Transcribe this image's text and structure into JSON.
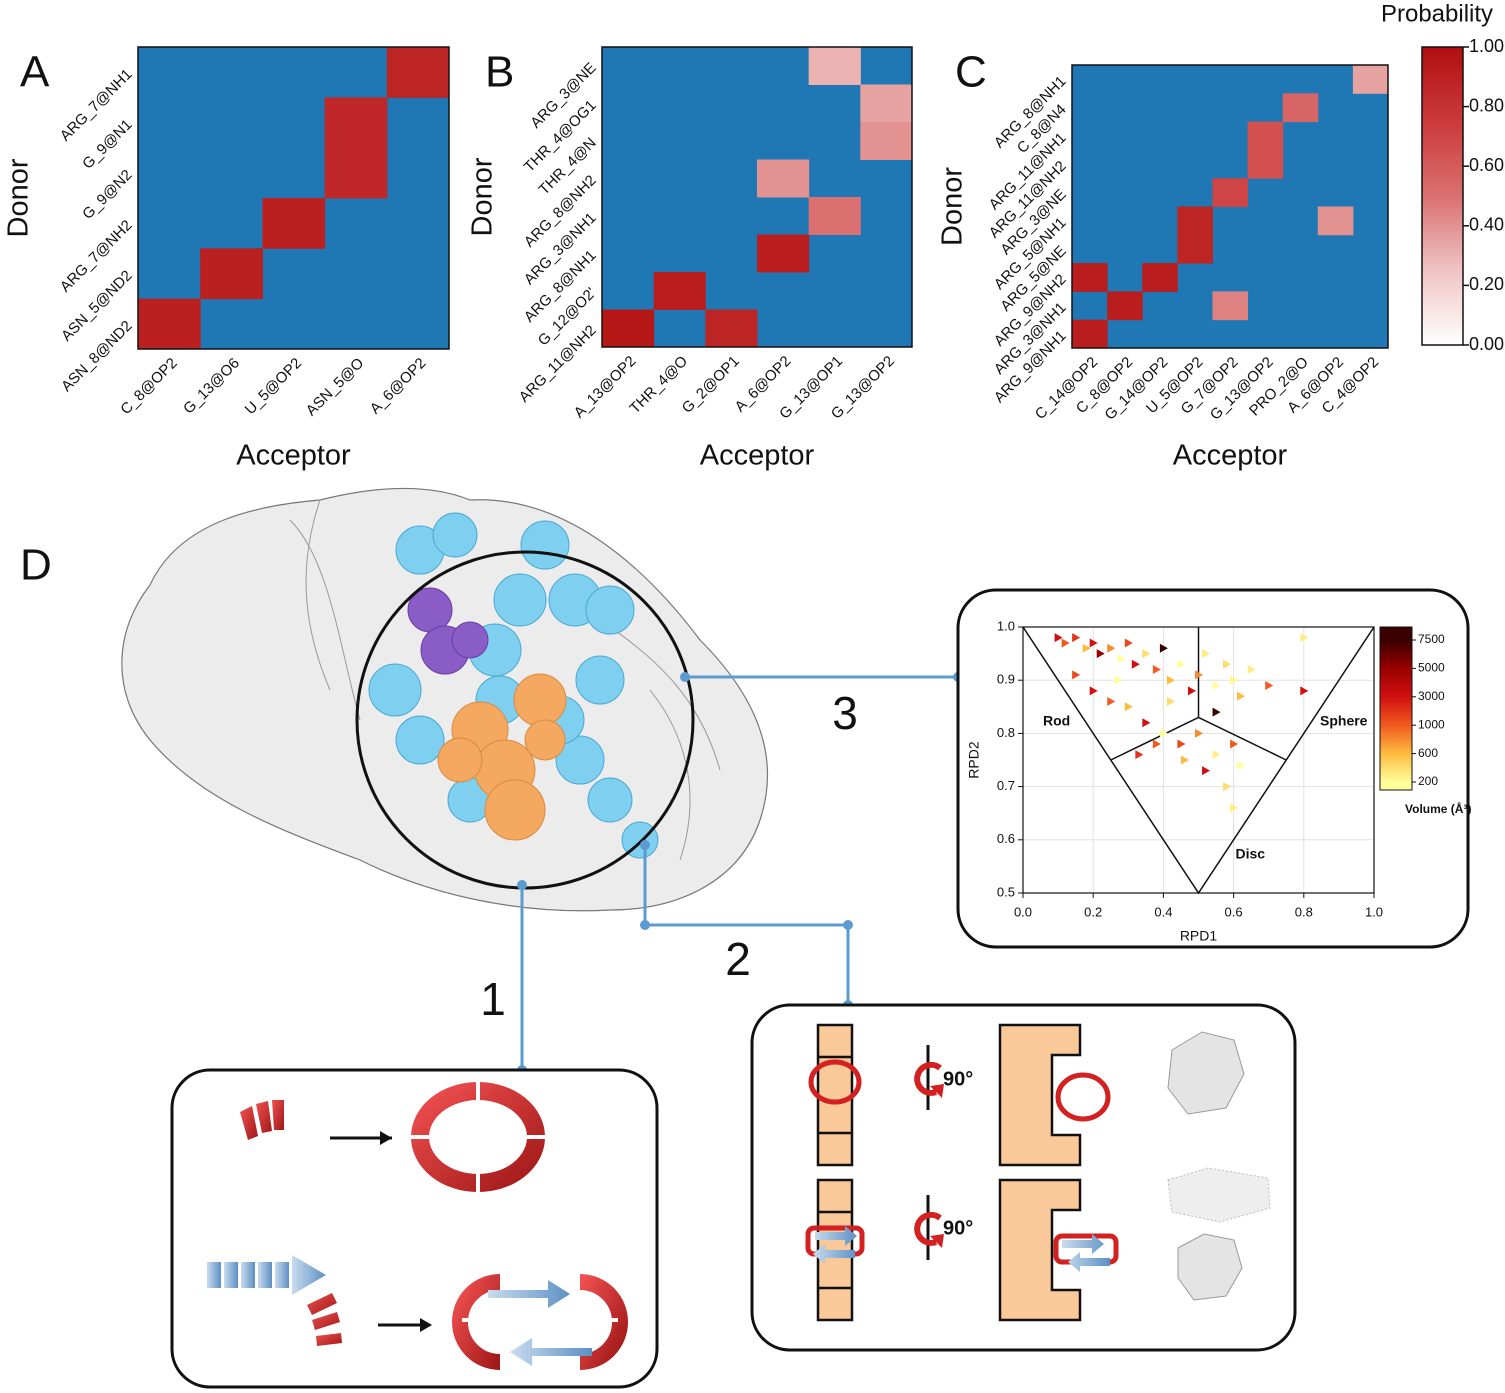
{
  "figure": {
    "panel_d": "D",
    "steps": [
      "1",
      "2",
      "3"
    ],
    "rotation_labels": [
      "90°",
      "90°"
    ]
  },
  "chart_data": [
    {
      "type": "heatmap",
      "panel": "A",
      "x_label": "Acceptor",
      "y_label": "Donor",
      "missing_color": "#1f78b4",
      "rows": [
        "ARG_7@NH1",
        "G_9@N1",
        "G_9@N2",
        "ARG_7@NH2",
        "ASN_5@ND2",
        "ASN_8@ND2"
      ],
      "columns": [
        "C_8@OP2",
        "G_13@O6",
        "U_5@OP2",
        "ASN_5@O",
        "A_6@OP2"
      ],
      "values": [
        [
          null,
          null,
          null,
          null,
          0.88
        ],
        [
          null,
          null,
          null,
          0.86,
          null
        ],
        [
          null,
          null,
          null,
          0.86,
          null
        ],
        [
          null,
          null,
          0.9,
          null,
          null
        ],
        [
          null,
          0.9,
          null,
          null,
          null
        ],
        [
          0.9,
          null,
          null,
          null,
          null
        ]
      ]
    },
    {
      "type": "heatmap",
      "panel": "B",
      "x_label": "Acceptor",
      "y_label": "Donor",
      "missing_color": "#1f78b4",
      "rows": [
        "ARG_3@NE",
        "THR_4@OG1",
        "THR_4@N",
        "ARG_8@NH2",
        "ARG_3@NH1",
        "ARG_8@NH1",
        "G_12@O2'",
        "ARG_11@NH2"
      ],
      "columns": [
        "A_13@OP2",
        "THR_4@O",
        "G_2@OP1",
        "A_6@OP2",
        "G_13@OP1",
        "G_13@OP2"
      ],
      "values": [
        [
          null,
          null,
          null,
          null,
          0.3,
          null
        ],
        [
          null,
          null,
          null,
          null,
          null,
          0.35
        ],
        [
          null,
          null,
          null,
          null,
          null,
          0.4
        ],
        [
          null,
          null,
          null,
          0.4,
          null,
          null
        ],
        [
          null,
          null,
          null,
          null,
          0.5,
          null
        ],
        [
          null,
          null,
          null,
          0.92,
          null,
          null
        ],
        [
          null,
          0.92,
          null,
          null,
          null,
          null
        ],
        [
          0.95,
          null,
          0.88,
          null,
          null,
          null
        ]
      ]
    },
    {
      "type": "heatmap",
      "panel": "C",
      "x_label": "Acceptor",
      "y_label": "Donor",
      "missing_color": "#1f78b4",
      "rows": [
        "ARG_8@NH1",
        "C_8@N4",
        "ARG_11@NH1",
        "ARG_11@NH2",
        "ARG_3@NE",
        "ARG_5@NH1",
        "ARG_5@NE",
        "ARG_9@NH2",
        "ARG_3@NH1",
        "ARG_9@NH1"
      ],
      "columns": [
        "C_14@OP2",
        "C_8@OP2",
        "G_14@OP2",
        "U_5@OP2",
        "G_7@OP2",
        "G_13@OP2",
        "PRO_2@O",
        "A_6@OP2",
        "C_4@OP2"
      ],
      "values": [
        [
          null,
          null,
          null,
          null,
          null,
          null,
          null,
          null,
          0.35
        ],
        [
          null,
          null,
          null,
          null,
          null,
          null,
          0.55,
          null,
          null
        ],
        [
          null,
          null,
          null,
          null,
          null,
          0.65,
          null,
          null,
          null
        ],
        [
          null,
          null,
          null,
          null,
          null,
          0.65,
          null,
          null,
          null
        ],
        [
          null,
          null,
          null,
          null,
          0.7,
          null,
          null,
          null,
          null
        ],
        [
          null,
          null,
          null,
          0.88,
          null,
          null,
          null,
          0.4,
          null
        ],
        [
          null,
          null,
          null,
          0.88,
          null,
          null,
          null,
          null,
          null
        ],
        [
          0.92,
          null,
          0.92,
          null,
          null,
          null,
          null,
          null,
          null
        ],
        [
          null,
          0.92,
          null,
          null,
          0.45,
          null,
          null,
          null,
          null
        ],
        [
          0.92,
          null,
          null,
          null,
          null,
          null,
          null,
          null,
          null
        ]
      ]
    },
    {
      "type": "colorbar",
      "title": "Probability",
      "lim": [
        0,
        1
      ],
      "ticks": [
        {
          "value": 0,
          "label": "0.00"
        },
        {
          "value": 0.2,
          "label": "0.20"
        },
        {
          "value": 0.4,
          "label": "0.40"
        },
        {
          "value": 0.6,
          "label": "0.60"
        },
        {
          "value": 0.8,
          "label": "0.80"
        },
        {
          "value": 1,
          "label": "1.00"
        }
      ]
    },
    {
      "type": "scatter",
      "x_label": "RPD1",
      "y_label": "RPD2",
      "xlim": [
        0,
        1
      ],
      "ylim": [
        0.5,
        1
      ],
      "xticks": [
        {
          "value": 0,
          "label": "0.0"
        },
        0.2,
        0.4,
        0.6,
        0.8,
        {
          "value": 1,
          "label": "1.0"
        }
      ],
      "yticks": [
        0.5,
        0.6,
        0.7,
        0.8,
        0.9,
        {
          "value": 1,
          "label": "1.0"
        }
      ],
      "annotations": [
        "Rod",
        "Sphere",
        "Disc"
      ],
      "grid": true,
      "colorbar_label": "Volume (Å³)",
      "colorbar_ticks": [
        200,
        600,
        1000,
        3000,
        5000,
        7500
      ],
      "colorbar_colors": [
        "#ffff99",
        "#fdbb3f",
        "#f05a1e",
        "#d01010",
        "#980000",
        "#3a0000"
      ],
      "x": [
        0.1,
        0.12,
        0.15,
        0.18,
        0.2,
        0.22,
        0.25,
        0.28,
        0.3,
        0.32,
        0.35,
        0.38,
        0.4,
        0.42,
        0.45,
        0.48,
        0.5,
        0.52,
        0.55,
        0.58,
        0.6,
        0.62,
        0.65,
        0.7,
        0.8,
        0.8,
        0.15,
        0.2,
        0.25,
        0.3,
        0.35,
        0.4,
        0.45,
        0.5,
        0.55,
        0.6,
        0.62,
        0.58,
        0.52,
        0.46,
        0.38,
        0.33,
        0.6,
        0.55,
        0.42,
        0.27
      ],
      "y": [
        0.98,
        0.97,
        0.98,
        0.96,
        0.97,
        0.95,
        0.96,
        0.94,
        0.97,
        0.93,
        0.95,
        0.92,
        0.96,
        0.9,
        0.93,
        0.88,
        0.91,
        0.95,
        0.89,
        0.93,
        0.9,
        0.87,
        0.92,
        0.89,
        0.98,
        0.88,
        0.91,
        0.88,
        0.86,
        0.85,
        0.82,
        0.8,
        0.78,
        0.8,
        0.76,
        0.78,
        0.74,
        0.7,
        0.73,
        0.75,
        0.78,
        0.76,
        0.66,
        0.84,
        0.86,
        0.9
      ],
      "volume": [
        3000,
        1000,
        2000,
        600,
        3000,
        5000,
        800,
        200,
        1500,
        3000,
        400,
        1000,
        7500,
        600,
        200,
        3000,
        800,
        300,
        200,
        400,
        250,
        600,
        300,
        1000,
        300,
        3000,
        1500,
        3000,
        1000,
        600,
        3000,
        200,
        1500,
        800,
        300,
        1000,
        200,
        400,
        3000,
        600,
        1000,
        2000,
        300,
        7500,
        400,
        200
      ]
    }
  ]
}
